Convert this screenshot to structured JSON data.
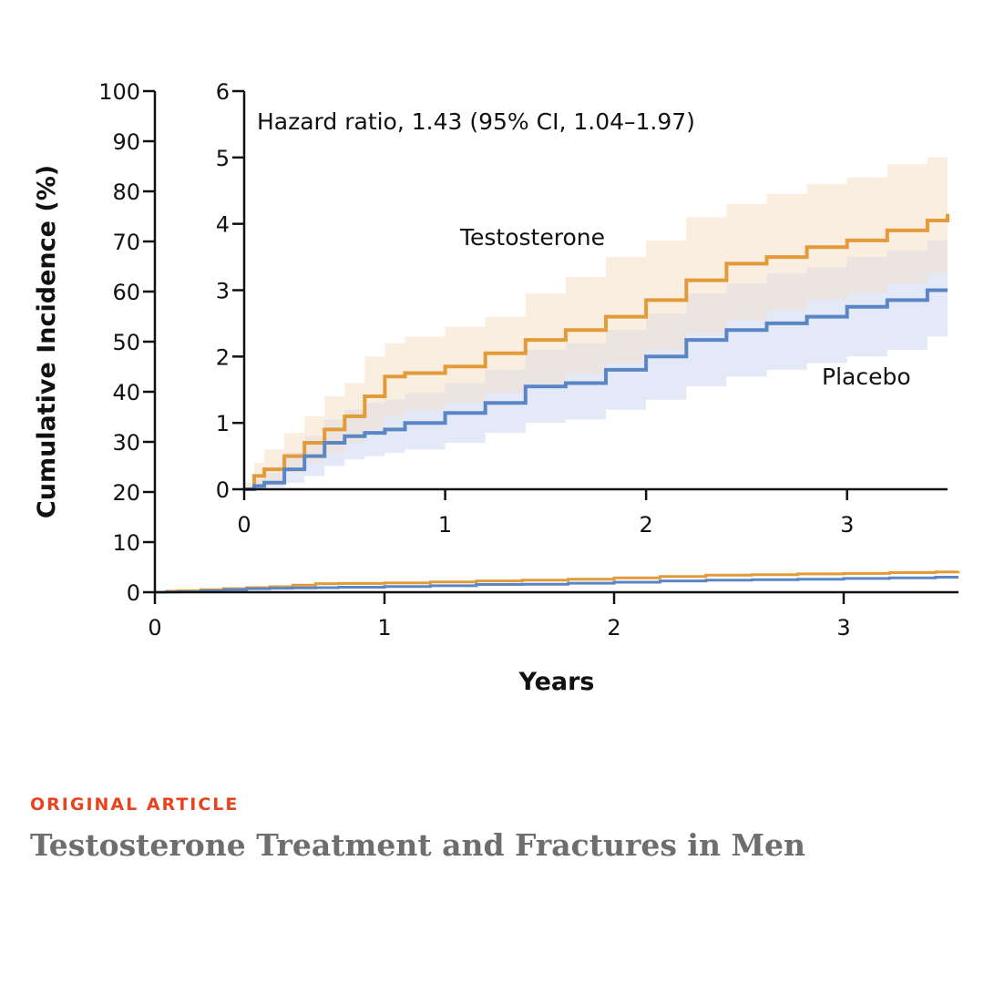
{
  "article": {
    "kicker": "ORIGINAL ARTICLE",
    "title": "Testosterone Treatment and Fractures in Men"
  },
  "colors": {
    "testosterone": "#e39b3a",
    "testosterone_band": "#f9eedf",
    "placebo": "#5b86c5",
    "placebo_band": "#e3e9f6",
    "overlap_band": "#ece4e1",
    "axis": "#111111"
  },
  "chart_data": [
    {
      "type": "line",
      "role": "main",
      "xlabel": "Years",
      "ylabel": "Cumulative Incidence (%)",
      "xlim": [
        0,
        3.5
      ],
      "ylim": [
        0,
        100
      ],
      "xticks": [
        "0",
        "1",
        "2",
        "3"
      ],
      "yticks": [
        "0",
        "10",
        "20",
        "30",
        "40",
        "50",
        "60",
        "70",
        "80",
        "90",
        "100"
      ],
      "series": [
        {
          "name": "Testosterone",
          "color": "#e39b3a",
          "x": [
            0,
            0.05,
            0.1,
            0.2,
            0.3,
            0.4,
            0.5,
            0.6,
            0.7,
            0.8,
            1.0,
            1.2,
            1.4,
            1.6,
            1.8,
            2.0,
            2.2,
            2.4,
            2.6,
            2.8,
            3.0,
            3.2,
            3.4,
            3.5
          ],
          "y": [
            0,
            0.2,
            0.3,
            0.5,
            0.7,
            0.9,
            1.1,
            1.4,
            1.7,
            1.75,
            1.85,
            2.05,
            2.25,
            2.4,
            2.6,
            2.85,
            3.15,
            3.4,
            3.5,
            3.65,
            3.75,
            3.9,
            4.05,
            4.15
          ]
        },
        {
          "name": "Placebo",
          "color": "#5b86c5",
          "x": [
            0,
            0.05,
            0.1,
            0.2,
            0.3,
            0.4,
            0.5,
            0.6,
            0.7,
            0.8,
            1.0,
            1.2,
            1.4,
            1.6,
            1.8,
            2.0,
            2.2,
            2.4,
            2.6,
            2.8,
            3.0,
            3.2,
            3.4,
            3.5
          ],
          "y": [
            0,
            0.05,
            0.1,
            0.3,
            0.5,
            0.7,
            0.8,
            0.85,
            0.9,
            1.0,
            1.15,
            1.3,
            1.55,
            1.6,
            1.8,
            2.0,
            2.25,
            2.4,
            2.5,
            2.6,
            2.75,
            2.85,
            3.0,
            3.0
          ]
        }
      ]
    },
    {
      "type": "line",
      "role": "inset",
      "xlim": [
        0,
        3.5
      ],
      "ylim": [
        0,
        6
      ],
      "xticks": [
        "0",
        "1",
        "2",
        "3"
      ],
      "yticks": [
        "0",
        "1",
        "2",
        "3",
        "4",
        "5",
        "6"
      ],
      "annotation": "Hazard ratio, 1.43 (95% CI, 1.04–1.97)",
      "labels": {
        "testosterone": "Testosterone",
        "placebo": "Placebo"
      },
      "series": [
        {
          "name": "Testosterone",
          "color": "#e39b3a",
          "x": [
            0,
            0.05,
            0.1,
            0.2,
            0.3,
            0.4,
            0.5,
            0.6,
            0.7,
            0.8,
            1.0,
            1.2,
            1.4,
            1.6,
            1.8,
            2.0,
            2.2,
            2.4,
            2.6,
            2.8,
            3.0,
            3.2,
            3.4,
            3.5
          ],
          "y": [
            0,
            0.2,
            0.3,
            0.5,
            0.7,
            0.9,
            1.1,
            1.4,
            1.7,
            1.75,
            1.85,
            2.05,
            2.25,
            2.4,
            2.6,
            2.85,
            3.15,
            3.4,
            3.5,
            3.65,
            3.75,
            3.9,
            4.05,
            4.15
          ],
          "ci_low": [
            0,
            0.05,
            0.1,
            0.25,
            0.4,
            0.55,
            0.7,
            0.9,
            1.1,
            1.2,
            1.3,
            1.45,
            1.6,
            1.75,
            1.9,
            2.1,
            2.35,
            2.55,
            2.7,
            2.85,
            2.95,
            3.1,
            3.25,
            3.35
          ],
          "ci_high": [
            0.1,
            0.4,
            0.6,
            0.85,
            1.1,
            1.4,
            1.6,
            2.0,
            2.2,
            2.3,
            2.45,
            2.6,
            2.95,
            3.2,
            3.5,
            3.75,
            4.1,
            4.3,
            4.45,
            4.6,
            4.7,
            4.9,
            5.0,
            5.05
          ]
        },
        {
          "name": "Placebo",
          "color": "#5b86c5",
          "x": [
            0,
            0.05,
            0.1,
            0.2,
            0.3,
            0.4,
            0.5,
            0.6,
            0.7,
            0.8,
            1.0,
            1.2,
            1.4,
            1.6,
            1.8,
            2.0,
            2.2,
            2.4,
            2.6,
            2.8,
            3.0,
            3.2,
            3.4,
            3.5
          ],
          "y": [
            0,
            0.05,
            0.1,
            0.3,
            0.5,
            0.7,
            0.8,
            0.85,
            0.9,
            1.0,
            1.15,
            1.3,
            1.55,
            1.6,
            1.8,
            2.0,
            2.25,
            2.4,
            2.5,
            2.6,
            2.75,
            2.85,
            3.0,
            3.0
          ],
          "ci_low": [
            0,
            0.01,
            0.03,
            0.1,
            0.2,
            0.35,
            0.45,
            0.5,
            0.55,
            0.6,
            0.7,
            0.85,
            1.0,
            1.05,
            1.2,
            1.35,
            1.55,
            1.7,
            1.8,
            1.9,
            2.0,
            2.1,
            2.3,
            2.3
          ],
          "ci_high": [
            0.05,
            0.15,
            0.25,
            0.55,
            0.8,
            1.05,
            1.2,
            1.3,
            1.35,
            1.45,
            1.6,
            1.8,
            2.1,
            2.2,
            2.4,
            2.65,
            2.95,
            3.1,
            3.25,
            3.35,
            3.5,
            3.6,
            3.75,
            3.8
          ]
        }
      ]
    }
  ]
}
